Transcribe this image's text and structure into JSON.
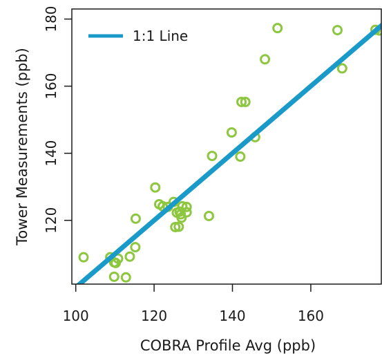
{
  "chart_data": {
    "type": "scatter",
    "xlabel": "COBRA Profile Avg (ppb)",
    "ylabel": "Tower Measurements (ppb)",
    "xlim": [
      99,
      178
    ],
    "ylim": [
      101,
      183
    ],
    "x_ticks": [
      100,
      120,
      140,
      160
    ],
    "y_ticks": [
      120,
      140,
      160,
      180
    ],
    "grid": false,
    "legend": {
      "position": "top-left",
      "entries": [
        {
          "label": "1:1 Line",
          "color": "#1a9ac9"
        }
      ]
    },
    "points_color": "#8dc63f",
    "line_color": "#1a9ac9",
    "reference_line": {
      "label": "1:1 Line",
      "from": [
        99,
        99
      ],
      "to": [
        183,
        183
      ]
    },
    "points": [
      [
        102,
        109.0
      ],
      [
        108.8,
        109.0
      ],
      [
        109.8,
        107.5
      ],
      [
        110.2,
        107.3
      ],
      [
        110.8,
        108.6
      ],
      [
        113.8,
        109.2
      ],
      [
        109.8,
        103.2
      ],
      [
        112.8,
        103.0
      ],
      [
        115.2,
        112.0
      ],
      [
        115.3,
        120.5
      ],
      [
        120.3,
        129.8
      ],
      [
        121.3,
        124.8
      ],
      [
        122.2,
        124.2
      ],
      [
        123.5,
        124.0
      ],
      [
        125.0,
        125.5
      ],
      [
        125.4,
        118.0
      ],
      [
        126.3,
        118.1
      ],
      [
        125.8,
        122.3
      ],
      [
        126.5,
        122.6
      ],
      [
        127.0,
        120.8
      ],
      [
        127.2,
        124.2
      ],
      [
        128.3,
        124.0
      ],
      [
        128.3,
        122.4
      ],
      [
        126.8,
        121.8
      ],
      [
        134.0,
        121.3
      ],
      [
        134.8,
        139.2
      ],
      [
        139.8,
        146.2
      ],
      [
        142.0,
        139.0
      ],
      [
        142.3,
        155.3
      ],
      [
        143.3,
        155.3
      ],
      [
        145.8,
        144.8
      ],
      [
        148.3,
        168.0
      ],
      [
        151.5,
        177.3
      ],
      [
        166.8,
        176.7
      ],
      [
        168.0,
        165.3
      ],
      [
        176.5,
        176.8
      ],
      [
        177.5,
        176.6
      ]
    ]
  }
}
